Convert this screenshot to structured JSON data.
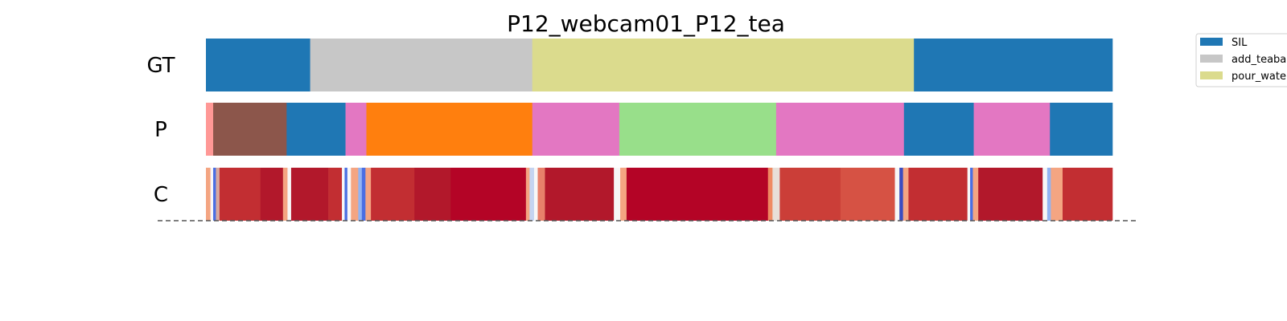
{
  "chart_data": {
    "type": "segmentation",
    "title": "P12_webcam01_P12_tea",
    "xlim": [
      0,
      1
    ],
    "rows": [
      {
        "label": "GT",
        "segments": [
          {
            "start": 0.0,
            "end": 0.115,
            "color": "#1f77b4"
          },
          {
            "start": 0.115,
            "end": 0.36,
            "color": "#c7c7c7"
          },
          {
            "start": 0.36,
            "end": 0.781,
            "color": "#dbdb8d"
          },
          {
            "start": 0.781,
            "end": 1.0,
            "color": "#1f77b4"
          }
        ]
      },
      {
        "label": "P",
        "segments": [
          {
            "start": 0.0,
            "end": 0.008,
            "color": "#ff9896"
          },
          {
            "start": 0.008,
            "end": 0.089,
            "color": "#8c564b"
          },
          {
            "start": 0.089,
            "end": 0.154,
            "color": "#1f77b4"
          },
          {
            "start": 0.154,
            "end": 0.177,
            "color": "#e377c2"
          },
          {
            "start": 0.177,
            "end": 0.36,
            "color": "#ff7f0e"
          },
          {
            "start": 0.36,
            "end": 0.456,
            "color": "#e377c2"
          },
          {
            "start": 0.456,
            "end": 0.629,
            "color": "#98df8a"
          },
          {
            "start": 0.629,
            "end": 0.77,
            "color": "#e377c2"
          },
          {
            "start": 0.77,
            "end": 0.847,
            "color": "#1f77b4"
          },
          {
            "start": 0.847,
            "end": 0.931,
            "color": "#e377c2"
          },
          {
            "start": 0.931,
            "end": 1.0,
            "color": "#1f77b4"
          }
        ]
      },
      {
        "label": "C",
        "segments": [
          {
            "start": 0.0,
            "end": 0.005,
            "color": "#f4a582"
          },
          {
            "start": 0.005,
            "end": 0.008,
            "color": "#f7f7f7"
          },
          {
            "start": 0.008,
            "end": 0.011,
            "color": "#4a6fe3"
          },
          {
            "start": 0.011,
            "end": 0.015,
            "color": "#d8a9a0"
          },
          {
            "start": 0.015,
            "end": 0.06,
            "color": "#c22e32"
          },
          {
            "start": 0.06,
            "end": 0.085,
            "color": "#b2182b"
          },
          {
            "start": 0.085,
            "end": 0.09,
            "color": "#f4a582"
          },
          {
            "start": 0.09,
            "end": 0.094,
            "color": "#f7f7f7"
          },
          {
            "start": 0.094,
            "end": 0.135,
            "color": "#b2182b"
          },
          {
            "start": 0.135,
            "end": 0.15,
            "color": "#c22e32"
          },
          {
            "start": 0.15,
            "end": 0.153,
            "color": "#f7f7f7"
          },
          {
            "start": 0.153,
            "end": 0.156,
            "color": "#4a6fe3"
          },
          {
            "start": 0.156,
            "end": 0.16,
            "color": "#f7f7f7"
          },
          {
            "start": 0.16,
            "end": 0.168,
            "color": "#f4a582"
          },
          {
            "start": 0.168,
            "end": 0.172,
            "color": "#92b4f3"
          },
          {
            "start": 0.172,
            "end": 0.176,
            "color": "#4a6fe3"
          },
          {
            "start": 0.176,
            "end": 0.182,
            "color": "#f4a582"
          },
          {
            "start": 0.182,
            "end": 0.23,
            "color": "#c22e32"
          },
          {
            "start": 0.23,
            "end": 0.27,
            "color": "#b2182b"
          },
          {
            "start": 0.27,
            "end": 0.353,
            "color": "#b40426"
          },
          {
            "start": 0.353,
            "end": 0.357,
            "color": "#f4a582"
          },
          {
            "start": 0.357,
            "end": 0.362,
            "color": "#c5d4f1"
          },
          {
            "start": 0.362,
            "end": 0.366,
            "color": "#f7f7f7"
          },
          {
            "start": 0.366,
            "end": 0.374,
            "color": "#e8806a"
          },
          {
            "start": 0.374,
            "end": 0.45,
            "color": "#b2182b"
          },
          {
            "start": 0.45,
            "end": 0.457,
            "color": "#f7f7f7"
          },
          {
            "start": 0.457,
            "end": 0.464,
            "color": "#f4a582"
          },
          {
            "start": 0.464,
            "end": 0.62,
            "color": "#b40426"
          },
          {
            "start": 0.62,
            "end": 0.625,
            "color": "#ef8a62"
          },
          {
            "start": 0.625,
            "end": 0.633,
            "color": "#e8dfd8"
          },
          {
            "start": 0.633,
            "end": 0.7,
            "color": "#cb3e38"
          },
          {
            "start": 0.7,
            "end": 0.76,
            "color": "#d65244"
          },
          {
            "start": 0.76,
            "end": 0.765,
            "color": "#f7f7f7"
          },
          {
            "start": 0.765,
            "end": 0.769,
            "color": "#3b4cc0"
          },
          {
            "start": 0.769,
            "end": 0.775,
            "color": "#f4a582"
          },
          {
            "start": 0.775,
            "end": 0.84,
            "color": "#c22e32"
          },
          {
            "start": 0.84,
            "end": 0.843,
            "color": "#f7f7f7"
          },
          {
            "start": 0.843,
            "end": 0.846,
            "color": "#4a6fe3"
          },
          {
            "start": 0.846,
            "end": 0.852,
            "color": "#f4a582"
          },
          {
            "start": 0.852,
            "end": 0.923,
            "color": "#b2182b"
          },
          {
            "start": 0.923,
            "end": 0.928,
            "color": "#f7f7f7"
          },
          {
            "start": 0.928,
            "end": 0.932,
            "color": "#92b4f3"
          },
          {
            "start": 0.932,
            "end": 0.945,
            "color": "#f4a582"
          },
          {
            "start": 0.945,
            "end": 1.0,
            "color": "#c22e32"
          }
        ]
      }
    ],
    "legend": {
      "placement": "top-right",
      "entries": [
        {
          "label": "SIL",
          "color": "#1f77b4"
        },
        {
          "label": "add_teaba",
          "color": "#c7c7c7"
        },
        {
          "label": "pour_wate",
          "color": "#dbdb8d"
        }
      ]
    },
    "baseline": {
      "style": "dashed",
      "color": "#555555"
    }
  }
}
